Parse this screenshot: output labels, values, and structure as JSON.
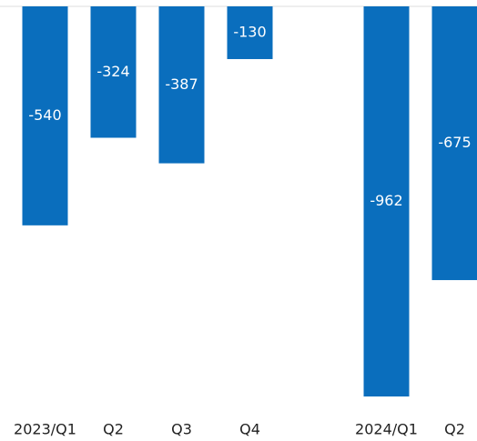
{
  "chart_data": {
    "type": "bar",
    "categories": [
      "2023/Q1",
      "Q2",
      "Q3",
      "Q4",
      null,
      "2024/Q1",
      "Q2"
    ],
    "values": [
      -540,
      -324,
      -387,
      -130,
      null,
      -962,
      -675
    ],
    "color": "#0a6ebd",
    "ylim": [
      -1000,
      0
    ]
  }
}
